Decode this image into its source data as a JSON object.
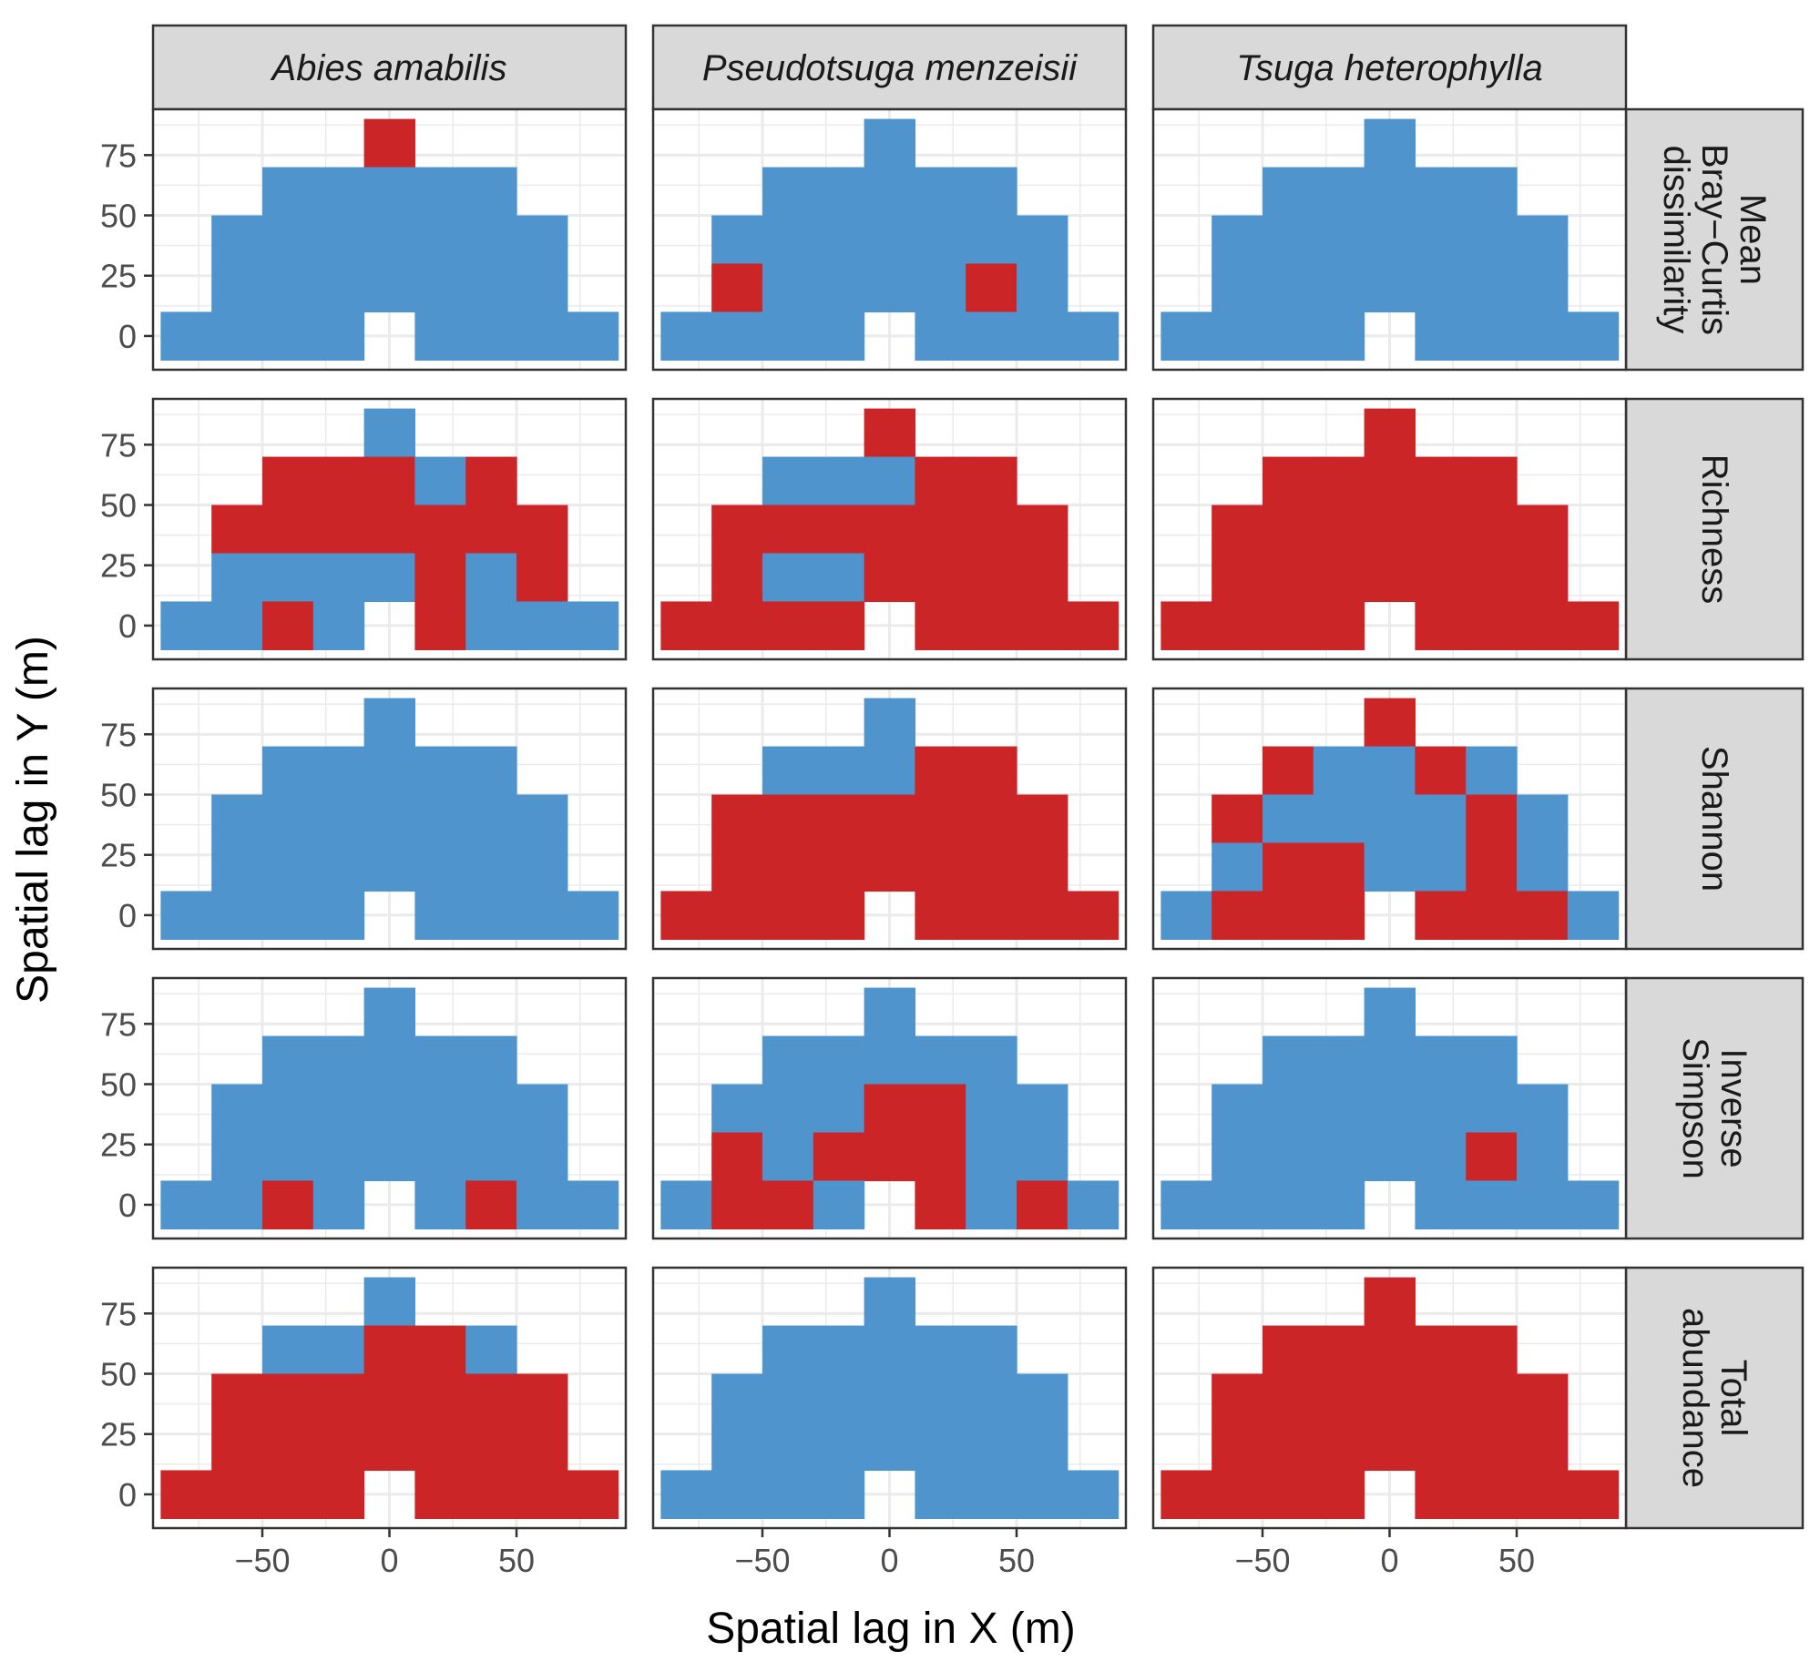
{
  "chart_data": {
    "type": "heatmap",
    "xlabel": "Spatial lag in X (m)",
    "ylabel": "Spatial lag in Y (m)",
    "x_ticks": [
      -50,
      0,
      50
    ],
    "y_ticks": [
      0,
      25,
      50,
      75
    ],
    "xlim": [
      -93,
      93
    ],
    "ylim": [
      -14,
      94
    ],
    "cell_size": 20,
    "column_panels": [
      "Abies amabilis",
      "Pseudotsuga menzeisii",
      "Tsuga heterophylla"
    ],
    "row_panels": [
      [
        "Mean",
        "Bray−Curtis",
        "dissimilarity"
      ],
      [
        "Richness"
      ],
      [
        "Shannon"
      ],
      [
        "Inverse",
        "Simpson"
      ],
      [
        "Total",
        "abundance"
      ]
    ],
    "grid_layout": {
      "y_values": [
        80,
        60,
        40,
        20,
        0
      ],
      "x_lags_per_row": [
        [
          0
        ],
        [
          -40,
          -20,
          0,
          20,
          40
        ],
        [
          -60,
          -40,
          -20,
          0,
          20,
          40,
          60
        ],
        [
          -60,
          -40,
          -20,
          0,
          20,
          40,
          60
        ],
        [
          -80,
          -60,
          -40,
          -20,
          20,
          40,
          60,
          80
        ]
      ]
    },
    "value_legend": {
      "B": "blue",
      "R": "red"
    },
    "colors": {
      "B": "#5094ce",
      "R": "#cb2527"
    },
    "panels": [
      [
        [
          "R",
          "BBBBB",
          "BBBBBBB",
          "BBBBBBB",
          "BBBBBBBB"
        ],
        [
          "B",
          "BBBBB",
          "BBBBBBB",
          "RBBBBRB",
          "BBBBBBBB"
        ],
        [
          "B",
          "BBBBB",
          "BBBBBBB",
          "BBBBBBB",
          "BBBBBBBB"
        ]
      ],
      [
        [
          "B",
          "RRRBR",
          "RRRRRRR",
          "BBBBRBR",
          "BBRBRBBB"
        ],
        [
          "R",
          "BBBRR",
          "RRRRRRR",
          "RBBRRRR",
          "RRRRRRRR"
        ],
        [
          "R",
          "RRRRR",
          "RRRRRRR",
          "RRRRRRR",
          "RRRRRRRR"
        ]
      ],
      [
        [
          "B",
          "BBBBB",
          "BBBBBBB",
          "BBBBBBB",
          "BBBBBBBB"
        ],
        [
          "B",
          "BBBRR",
          "RRRRRRR",
          "RRRRRRR",
          "RRRRRRRR"
        ],
        [
          "R",
          "RBBRB",
          "RBBBBRB",
          "BRRBBRB",
          "BRRRRRRB"
        ]
      ],
      [
        [
          "B",
          "BBBBB",
          "BBBBBBB",
          "BBBBBBB",
          "BBRBBRBB"
        ],
        [
          "B",
          "BBBBB",
          "BBBRRBB",
          "RBRRRBB",
          "BRRBRBRB"
        ],
        [
          "B",
          "BBBBB",
          "BBBBBBB",
          "BBBBBRB",
          "BBBBBBBB"
        ]
      ],
      [
        [
          "B",
          "BBRRB",
          "RRRRRRR",
          "RRRRRRR",
          "RRRRRRRR"
        ],
        [
          "B",
          "BBBBB",
          "BBBBBBB",
          "BBBBBBB",
          "BBBBBBBB"
        ],
        [
          "R",
          "RRRRR",
          "RRRRRRR",
          "RRRRRRR",
          "RRRRRRRR"
        ]
      ]
    ]
  }
}
